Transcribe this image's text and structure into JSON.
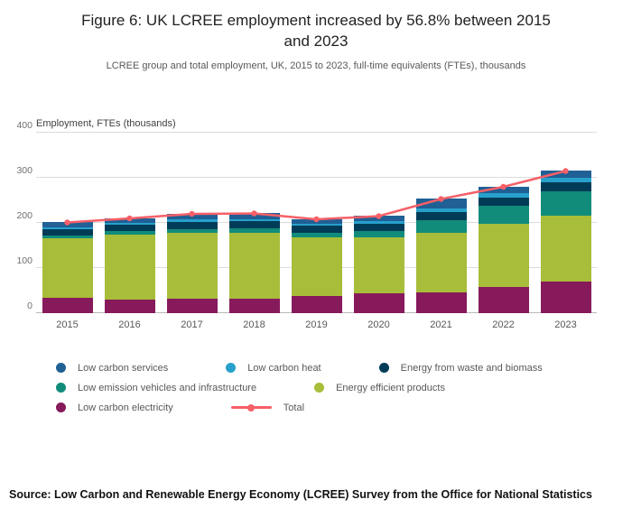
{
  "header": {
    "title": "Figure 6: UK LCREE employment increased by 56.8% between 2015 and 2023",
    "subtitle": "LCREE group and total employment, UK, 2015 to 2023, full-time equivalents (FTEs), thousands"
  },
  "chart_data": {
    "type": "bar",
    "stacked": true,
    "title": "Figure 6: UK LCREE employment increased by 56.8% between 2015 and 2023",
    "xlabel": "",
    "ylabel": "Employment, FTEs (thousands)",
    "ylim": [
      0,
      400
    ],
    "y_ticks": [
      0,
      100,
      200,
      300,
      400
    ],
    "grid": "horizontal",
    "legend_position": "bottom",
    "categories": [
      "2015",
      "2016",
      "2017",
      "2018",
      "2019",
      "2020",
      "2021",
      "2022",
      "2023"
    ],
    "series": [
      {
        "name": "Low carbon electricity",
        "color": "#871A5B",
        "values": [
          33,
          30,
          32,
          32,
          38,
          43,
          46,
          57,
          70
        ]
      },
      {
        "name": "Energy efficient products",
        "color": "#A8BD3A",
        "values": [
          133,
          144,
          146,
          146,
          130,
          124,
          132,
          141,
          146
        ]
      },
      {
        "name": "Low emission vehicles and infrastructure",
        "color": "#118C7B",
        "values": [
          6,
          7,
          8,
          9,
          10,
          14,
          28,
          40,
          53
        ]
      },
      {
        "name": "Energy from waste and biomass",
        "color": "#003C57",
        "values": [
          14,
          15,
          16,
          16,
          15,
          16,
          17,
          18,
          20
        ]
      },
      {
        "name": "Low carbon heat",
        "color": "#27A0CC",
        "values": [
          4,
          4,
          5,
          5,
          5,
          6,
          9,
          10,
          11
        ]
      },
      {
        "name": "Low carbon services",
        "color": "#206095",
        "values": [
          11,
          10,
          13,
          13,
          10,
          12,
          21,
          14,
          15
        ]
      }
    ],
    "line_series": {
      "name": "Total",
      "color": "#F66068",
      "values": [
        201,
        210,
        220,
        221,
        208,
        215,
        253,
        280,
        315
      ]
    },
    "legend": [
      {
        "row": 0,
        "label": "Low carbon services",
        "color": "#206095",
        "marker": "circle"
      },
      {
        "row": 0,
        "label": "Low carbon heat",
        "color": "#27A0CC",
        "marker": "circle"
      },
      {
        "row": 0,
        "label": "Energy from waste and biomass",
        "color": "#003C57",
        "marker": "circle"
      },
      {
        "row": 1,
        "label": "Low emission vehicles and infrastructure",
        "color": "#118C7B",
        "marker": "circle"
      },
      {
        "row": 1,
        "label": "Energy efficient products",
        "color": "#A8BD3A",
        "marker": "circle"
      },
      {
        "row": 2,
        "label": "Low carbon electricity",
        "color": "#871A5B",
        "marker": "circle"
      },
      {
        "row": 2,
        "label": "Total",
        "color": "#F66068",
        "marker": "line"
      }
    ]
  },
  "footer": {
    "source": "Source: Low Carbon and Renewable Energy Economy (LCREE) Survey from the Office for National Statistics"
  }
}
